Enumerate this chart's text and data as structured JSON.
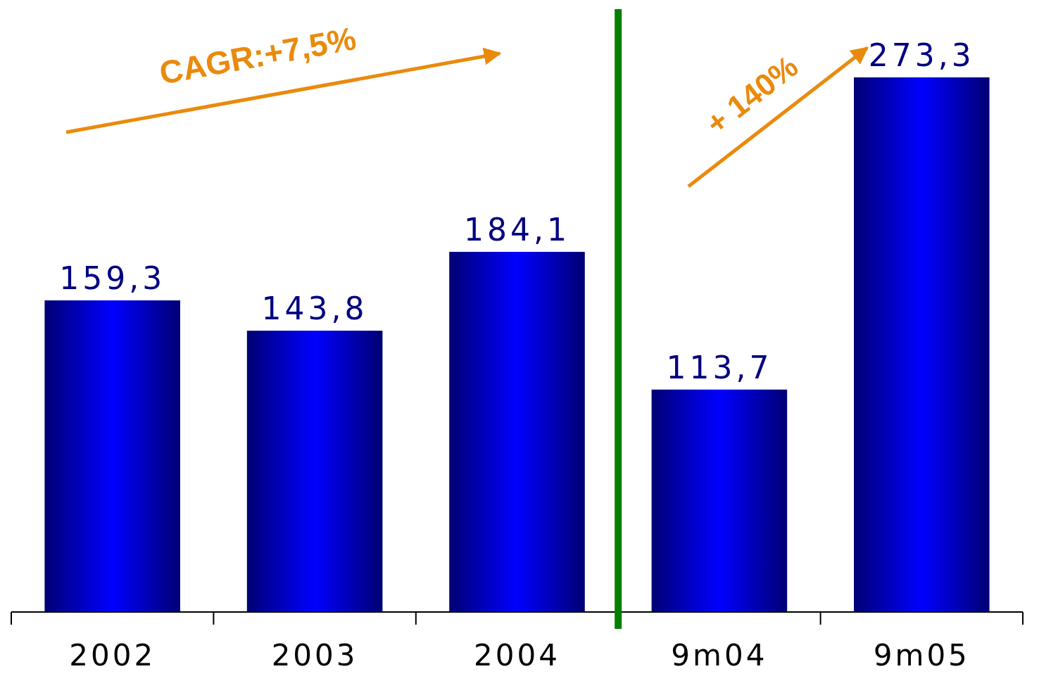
{
  "chart_data": {
    "type": "bar",
    "categories": [
      "2002",
      "2003",
      "2004",
      "9m04",
      "9m05"
    ],
    "values": [
      159.3,
      143.8,
      184.1,
      113.7,
      273.3
    ],
    "color": "#0000ff",
    "value_labels": [
      "159,3",
      "143,8",
      "184,1",
      "113,7",
      "273,3"
    ],
    "annotations": [
      "CAGR:+7,5%",
      "+ 140%"
    ]
  }
}
